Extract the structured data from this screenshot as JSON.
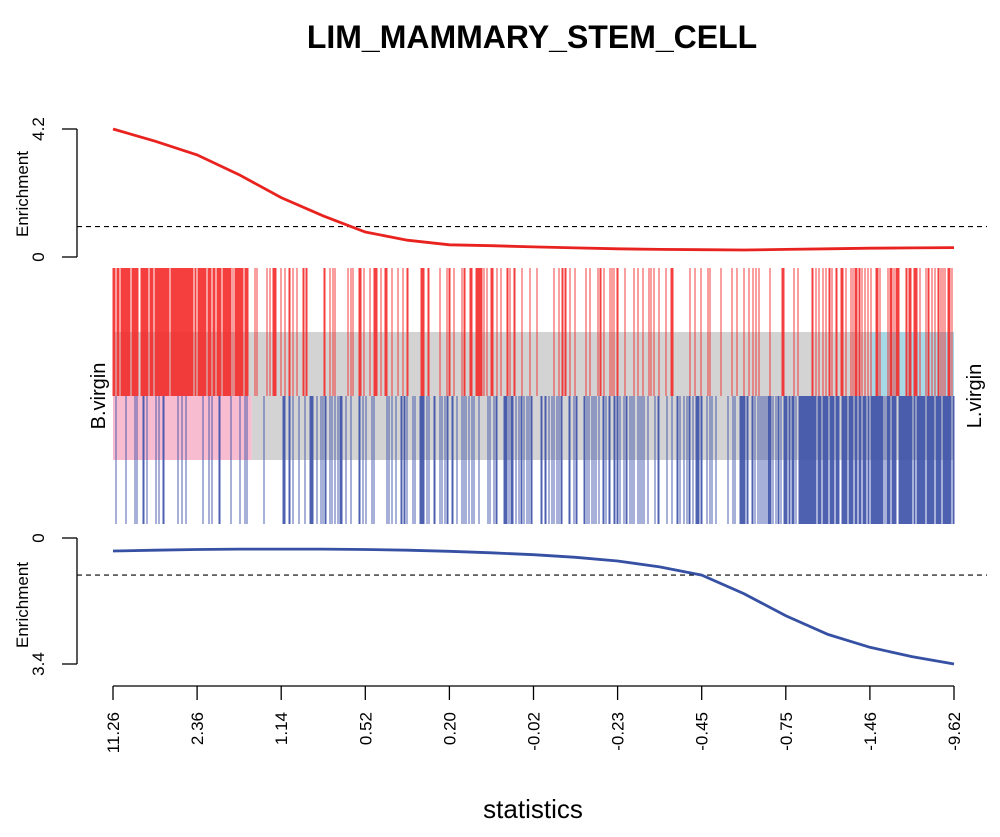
{
  "chart_data": {
    "type": "line",
    "title": "LIM_MAMMARY_STEM_CELL",
    "xlabel": "statistics",
    "x_tick_labels": [
      "11.26",
      "2.36",
      "1.14",
      "0.52",
      "0.20",
      "-0.02",
      "-0.23",
      "-0.45",
      "-0.75",
      "-1.46",
      "-9.62"
    ],
    "n_ranks": 1000,
    "left_group_label": "B.virgin",
    "right_group_label": "L.virgin",
    "colors": {
      "up": "#e8231f",
      "up_bar": "#f42a2a",
      "down": "#3650a3",
      "down_bar": "#3a4fa8",
      "pink": "#f7bcd0",
      "gray": "#d3d3d3",
      "lightblue": "#a7d8e5"
    },
    "panels": {
      "up": {
        "ylabel": "Enrichment",
        "y_tick_labels": [
          "0",
          "4.2"
        ],
        "ylim": [
          0,
          4.2
        ],
        "reference_line": 1,
        "series": {
          "name": "",
          "x": [
            0,
            50,
            100,
            150,
            200,
            250,
            300,
            350,
            400,
            450,
            500,
            550,
            600,
            650,
            700,
            750,
            800,
            850,
            900,
            950,
            1000
          ],
          "y": [
            4.2,
            3.8,
            3.35,
            2.7,
            1.95,
            1.35,
            0.82,
            0.55,
            0.4,
            0.37,
            0.33,
            0.3,
            0.27,
            0.25,
            0.24,
            0.23,
            0.25,
            0.27,
            0.29,
            0.3,
            0.31
          ]
        }
      },
      "down": {
        "ylabel": "Enrichment",
        "y_tick_labels": [
          "0",
          "3.4"
        ],
        "ylim": [
          0,
          3.4
        ],
        "reference_line": 1,
        "series": {
          "name": "",
          "x": [
            0,
            50,
            100,
            150,
            200,
            250,
            300,
            350,
            400,
            450,
            500,
            550,
            600,
            650,
            700,
            750,
            800,
            850,
            900,
            950,
            1000
          ],
          "y": [
            0.35,
            0.33,
            0.31,
            0.3,
            0.3,
            0.3,
            0.31,
            0.33,
            0.36,
            0.4,
            0.45,
            0.52,
            0.62,
            0.78,
            1.0,
            1.5,
            2.1,
            2.6,
            2.95,
            3.2,
            3.4
          ]
        }
      }
    },
    "barcode": {
      "up_bands": [
        [
          0,
          0.16,
          0.85
        ],
        [
          0.16,
          0.45,
          0.3
        ],
        [
          0.45,
          0.85,
          0.22
        ],
        [
          0.85,
          1.0,
          0.4
        ]
      ],
      "down_bands": [
        [
          0,
          0.2,
          0.15
        ],
        [
          0.2,
          0.55,
          0.3
        ],
        [
          0.55,
          0.8,
          0.4
        ],
        [
          0.8,
          1.0,
          0.85
        ]
      ],
      "background_segments": [
        {
          "row": "upper",
          "from": 0.0,
          "to": 0.9,
          "color": "gray"
        },
        {
          "row": "upper",
          "from": 0.9,
          "to": 1.0,
          "color": "lightblue"
        },
        {
          "row": "lower",
          "from": 0.0,
          "to": 0.165,
          "color": "pink"
        },
        {
          "row": "lower",
          "from": 0.165,
          "to": 1.0,
          "color": "gray"
        }
      ]
    }
  }
}
